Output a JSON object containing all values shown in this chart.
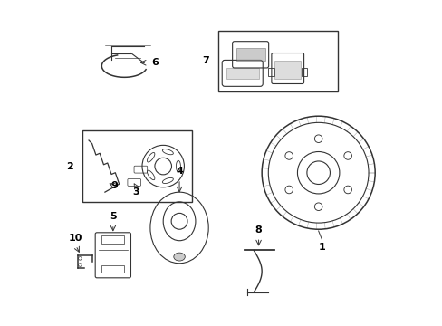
{
  "background_color": "#ffffff",
  "line_color": "#333333",
  "label_color": "#000000",
  "figsize": [
    4.89,
    3.6
  ],
  "dpi": 100
}
